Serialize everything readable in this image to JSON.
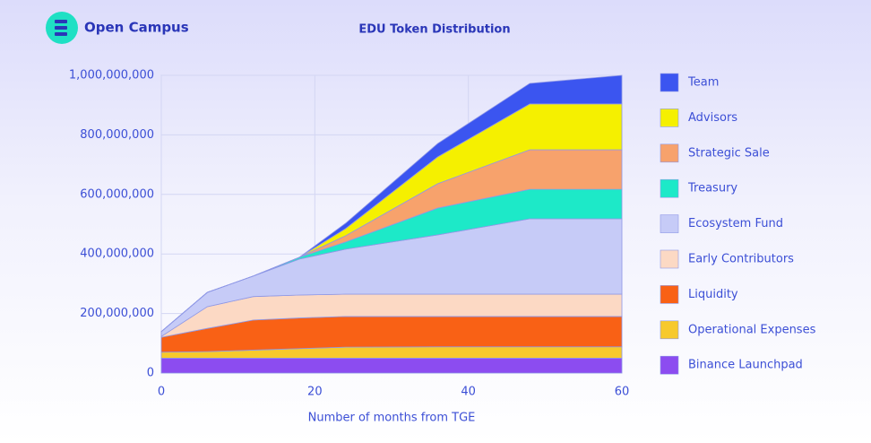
{
  "brand": "Open Campus",
  "chart_data": {
    "type": "stacked-area",
    "title": "EDU Token Distribution",
    "x_label": "Number of months from TGE",
    "x": [
      0,
      6,
      12,
      18,
      24,
      36,
      48,
      60
    ],
    "xlim": [
      0,
      60
    ],
    "xticks": [
      0,
      20,
      40,
      60
    ],
    "ylim": [
      0,
      1000000000
    ],
    "yticks": [
      {
        "value": 0,
        "label": "0"
      },
      {
        "value": 200000000,
        "label": "200,000,000"
      },
      {
        "value": 400000000,
        "label": "400,000,000"
      },
      {
        "value": 600000000,
        "label": "600,000,000"
      },
      {
        "value": 800000000,
        "label": "800,000,000"
      },
      {
        "value": 1000000000,
        "label": "1,000,000,000"
      }
    ],
    "grid": true,
    "legend": "right",
    "series": [
      {
        "name": "Team",
        "color": "#3b55f0",
        "values": [
          0,
          0,
          0,
          0,
          18000000,
          45000000,
          69000000,
          96000000
        ]
      },
      {
        "name": "Advisors",
        "color": "#f5f000",
        "values": [
          0,
          0,
          0,
          0,
          24000000,
          90000000,
          154000000,
          154000000
        ]
      },
      {
        "name": "Strategic Sale",
        "color": "#f7a26c",
        "values": [
          0,
          0,
          0,
          0,
          21000000,
          82000000,
          133000000,
          133000000
        ]
      },
      {
        "name": "Treasury",
        "color": "#1de9c8",
        "values": [
          0,
          0,
          0,
          6000000,
          24000000,
          90000000,
          99000000,
          99000000
        ]
      },
      {
        "name": "Ecosystem Fund",
        "color": "#c6cbf7",
        "values": [
          16000000,
          48000000,
          69000000,
          121000000,
          151000000,
          199000000,
          253000000,
          253000000
        ]
      },
      {
        "name": "Early Contributors",
        "color": "#fcd9c4",
        "values": [
          3000000,
          73000000,
          79000000,
          77000000,
          75000000,
          75000000,
          75000000,
          75000000
        ]
      },
      {
        "name": "Liquidity",
        "color": "#f96115",
        "values": [
          50000000,
          78000000,
          101000000,
          103000000,
          103000000,
          102000000,
          102000000,
          102000000
        ]
      },
      {
        "name": "Operational Expenses",
        "color": "#f7c92c",
        "values": [
          20000000,
          22000000,
          27000000,
          32000000,
          37000000,
          38000000,
          38000000,
          38000000
        ]
      },
      {
        "name": "Binance Launchpad",
        "color": "#8c4cf0",
        "values": [
          50000000,
          50000000,
          50000000,
          50000000,
          50000000,
          50000000,
          50000000,
          50000000
        ]
      }
    ]
  }
}
